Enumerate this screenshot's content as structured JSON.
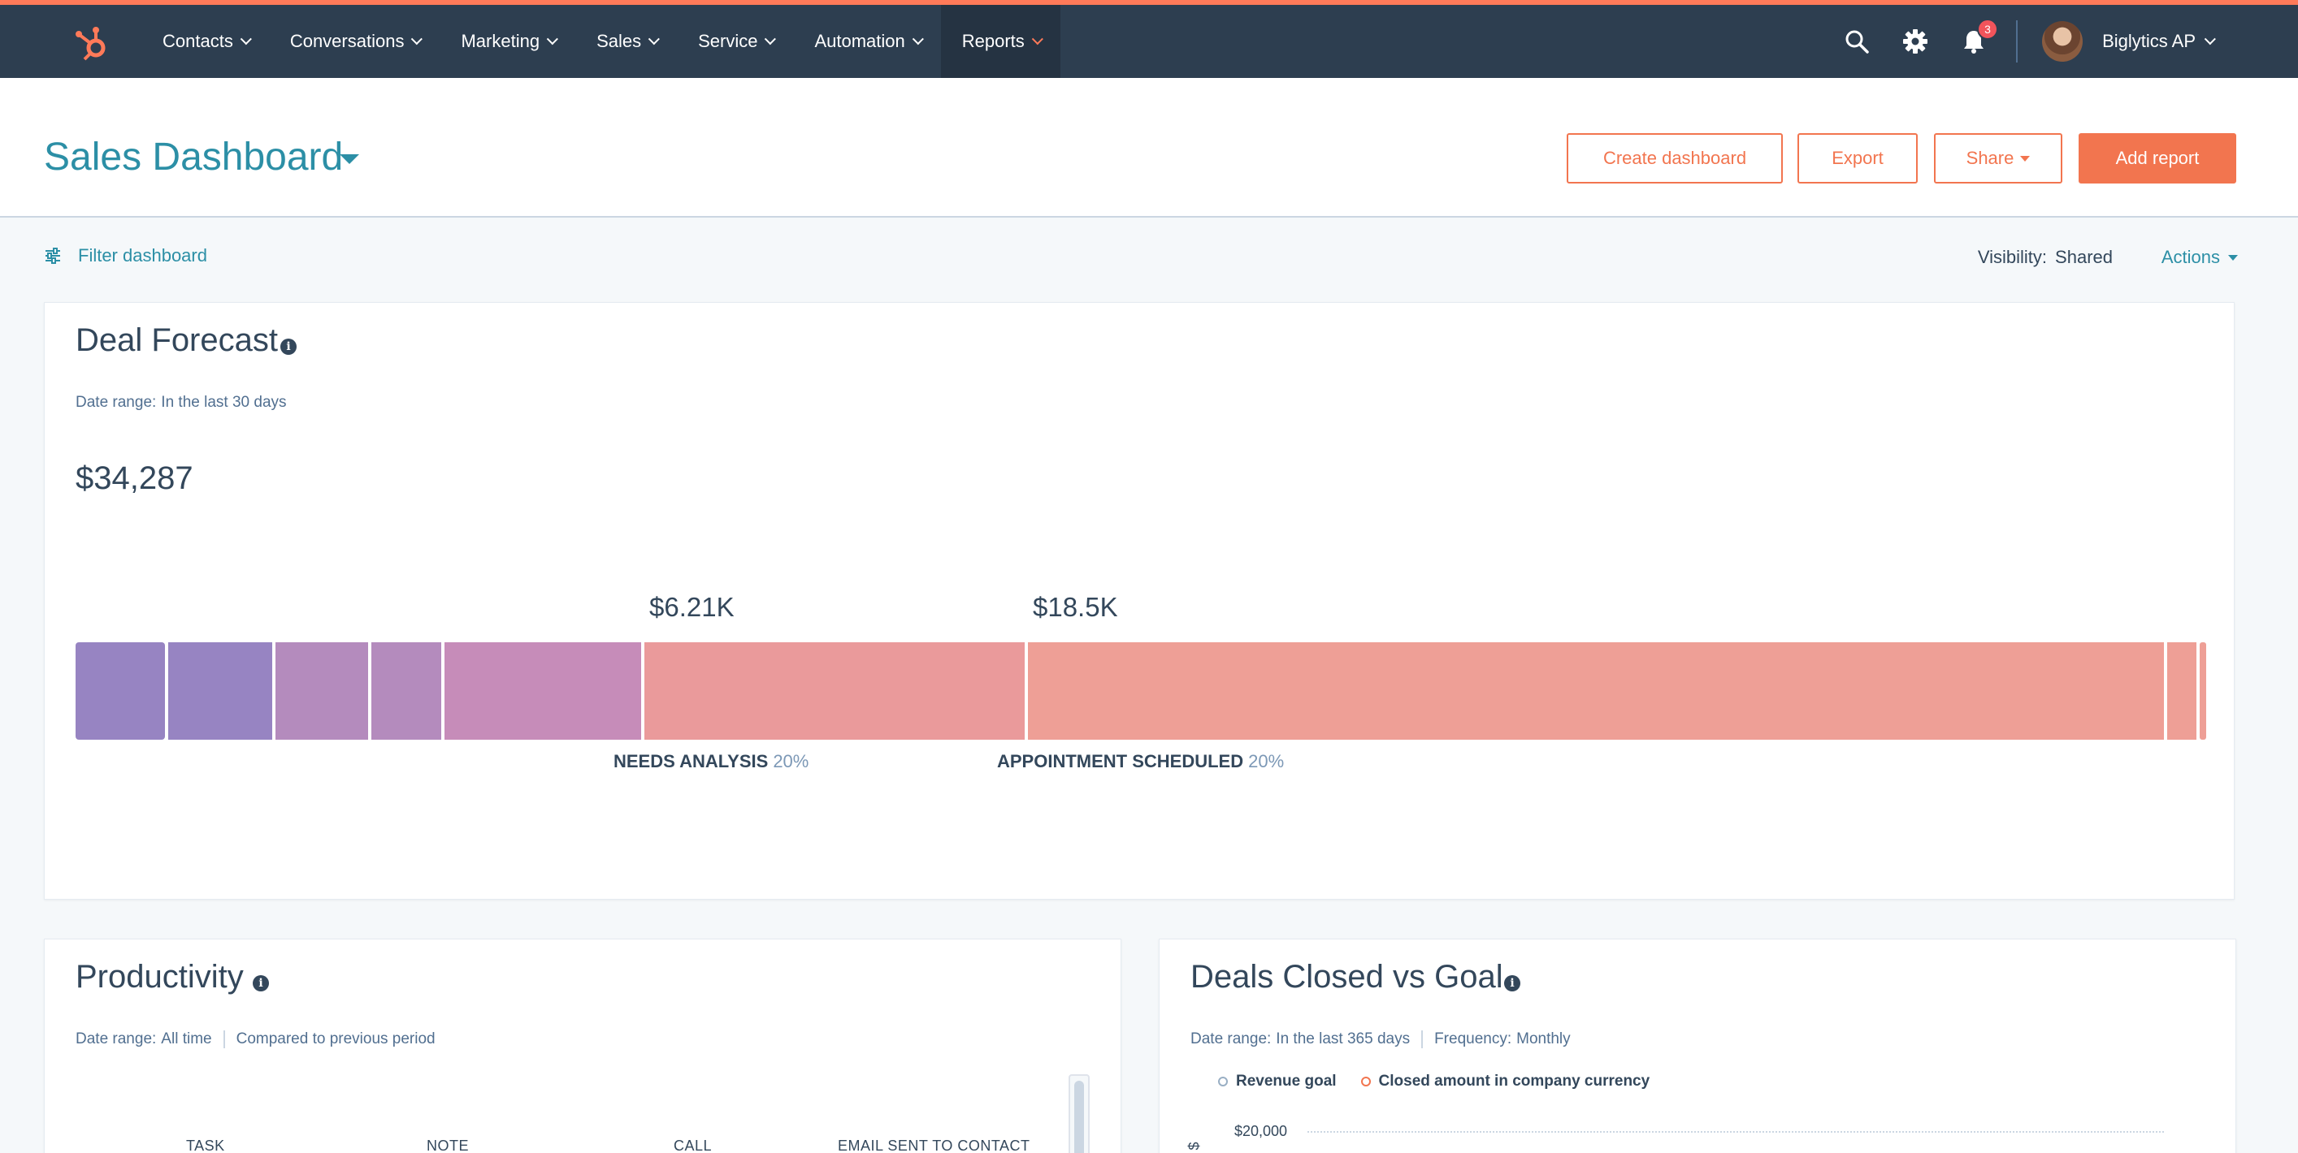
{
  "nav": {
    "items": [
      {
        "label": "Contacts",
        "active": false
      },
      {
        "label": "Conversations",
        "active": false
      },
      {
        "label": "Marketing",
        "active": false
      },
      {
        "label": "Sales",
        "active": false
      },
      {
        "label": "Service",
        "active": false
      },
      {
        "label": "Automation",
        "active": false
      },
      {
        "label": "Reports",
        "active": true
      }
    ],
    "notifications_count": "3",
    "account_name": "Biglytics AP"
  },
  "header": {
    "title": "Sales Dashboard",
    "create_dashboard": "Create dashboard",
    "export": "Export",
    "share": "Share",
    "add_report": "Add report"
  },
  "filterbar": {
    "filter_label": "Filter dashboard",
    "visibility_label": "Visibility:",
    "visibility_value": "Shared",
    "actions_label": "Actions"
  },
  "deal_forecast": {
    "title": "Deal Forecast",
    "date_range_label": "Date range:",
    "date_range_value": "In the last 30 days",
    "total": "$34,287",
    "stages": [
      {
        "amount": "$6.21K",
        "name": "NEEDS ANALYSIS",
        "pct": "20%"
      },
      {
        "amount": "$18.5K",
        "name": "APPOINTMENT SCHEDULED",
        "pct": "20%"
      }
    ]
  },
  "productivity": {
    "title": "Productivity",
    "date_range_label": "Date range:",
    "date_range_value": "All time",
    "compare": "Compared to previous period",
    "columns": [
      "TASK",
      "NOTE",
      "CALL",
      "EMAIL SENT TO CONTACT"
    ]
  },
  "deals_closed": {
    "title": "Deals Closed vs Goal",
    "date_range_label": "Date range:",
    "date_range_value": "In the last 365 days",
    "frequency_label": "Frequency:",
    "frequency_value": "Monthly",
    "legend": [
      "Revenue goal",
      "Closed amount in company currency"
    ],
    "y_tick": "$20,000",
    "y_axis_glyph": "$"
  },
  "colors": {
    "accent": "#ff7a59",
    "button": "#f2754f",
    "link": "#2c8fa6",
    "nav_bg": "#2d3e50",
    "segments": [
      "#9784c2",
      "#9784c2",
      "#b48bbd",
      "#b48bbd",
      "#c68cb9",
      "#ea9a9b",
      "#f0a196",
      "#ee9f96",
      "#ee9f96"
    ]
  },
  "chart_data": {
    "type": "bar",
    "title": "Deal Forecast",
    "total": 34287,
    "series": [
      {
        "name": "NEEDS ANALYSIS",
        "value": 6210,
        "probability": 0.2
      },
      {
        "name": "APPOINTMENT SCHEDULED",
        "value": 18500,
        "probability": 0.2
      }
    ]
  }
}
